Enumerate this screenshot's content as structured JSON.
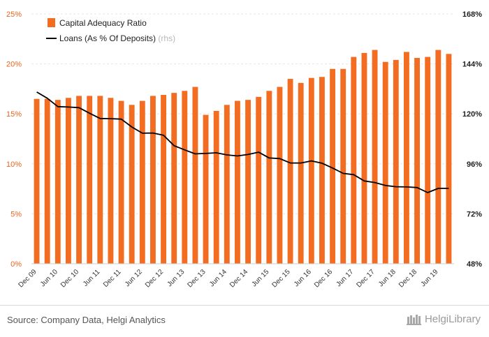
{
  "chart_data": {
    "type": "bar",
    "categories": [
      "Dec 09",
      "Mar 10",
      "Jun 10",
      "Sep 10",
      "Dec 10",
      "Mar 11",
      "Jun 11",
      "Sep 11",
      "Dec 11",
      "Mar 12",
      "Jun 12",
      "Sep 12",
      "Dec 12",
      "Mar 13",
      "Jun 13",
      "Sep 13",
      "Dec 13",
      "Mar 14",
      "Jun 14",
      "Sep 14",
      "Dec 14",
      "Mar 15",
      "Jun 15",
      "Sep 15",
      "Dec 15",
      "Mar 16",
      "Jun 16",
      "Sep 16",
      "Dec 16",
      "Mar 17",
      "Jun 17",
      "Sep 17",
      "Dec 17",
      "Mar 18",
      "Jun 18",
      "Sep 18",
      "Dec 18",
      "Mar 19",
      "Jun 19",
      "Sep 19"
    ],
    "x_tick_labels": [
      "Dec 09",
      "Jun 10",
      "Dec 10",
      "Jun 11",
      "Dec 11",
      "Jun 12",
      "Dec 12",
      "Jun 13",
      "Dec 13",
      "Jun 14",
      "Dec 14",
      "Jun 15",
      "Dec 15",
      "Jun 16",
      "Dec 16",
      "Jun 17",
      "Dec 17",
      "Jun 18",
      "Dec 18",
      "Jun 19"
    ],
    "series": [
      {
        "name": "Capital Adequacy Ratio",
        "type": "bar",
        "axis": "left",
        "color": "#f26d21",
        "values": [
          16.5,
          16.5,
          16.4,
          16.6,
          16.8,
          16.8,
          16.8,
          16.6,
          16.3,
          15.9,
          16.3,
          16.8,
          16.9,
          17.1,
          17.3,
          17.7,
          14.9,
          15.3,
          15.9,
          16.3,
          16.4,
          16.7,
          17.3,
          17.7,
          18.5,
          18.1,
          18.6,
          18.7,
          19.5,
          19.5,
          20.7,
          21.1,
          21.4,
          20.2,
          20.4,
          21.2,
          20.6,
          20.7,
          21.4,
          21.0
        ]
      },
      {
        "name": "Loans (As % Of Deposits)",
        "name_suffix": "(rhs)",
        "type": "line",
        "axis": "right",
        "color": "#000000",
        "values": [
          130.5,
          127.5,
          123.5,
          123.3,
          123.0,
          120.3,
          117.8,
          117.7,
          117.5,
          113.7,
          110.7,
          110.8,
          109.7,
          104.7,
          102.7,
          100.8,
          101.0,
          101.3,
          100.3,
          99.8,
          100.5,
          101.6,
          98.8,
          98.5,
          96.4,
          96.4,
          97.4,
          96.3,
          94.0,
          91.4,
          90.8,
          87.8,
          87.0,
          85.6,
          85.0,
          84.9,
          84.6,
          82.2,
          84.2,
          84.2
        ]
      }
    ],
    "y_left": {
      "ticks": [
        "0%",
        "5%",
        "10%",
        "15%",
        "20%",
        "25%"
      ],
      "min": 0,
      "max": 25,
      "step": 5
    },
    "y_right": {
      "ticks": [
        "48%",
        "72%",
        "96%",
        "120%",
        "144%",
        "168%"
      ],
      "min": 48,
      "max": 168,
      "step": 24
    },
    "grid": true,
    "legend": "top-left"
  },
  "legend": {
    "bar_label": "Capital Adequacy Ratio",
    "line_label": "Loans (As % Of Deposits)",
    "line_suffix": "(rhs)"
  },
  "footer": {
    "source": "Source: Company Data, Helgi Analytics",
    "brand": "HelgiLibrary"
  },
  "colors": {
    "bar": "#f26d21",
    "line": "#000000",
    "left_axis": "#e8641e"
  }
}
